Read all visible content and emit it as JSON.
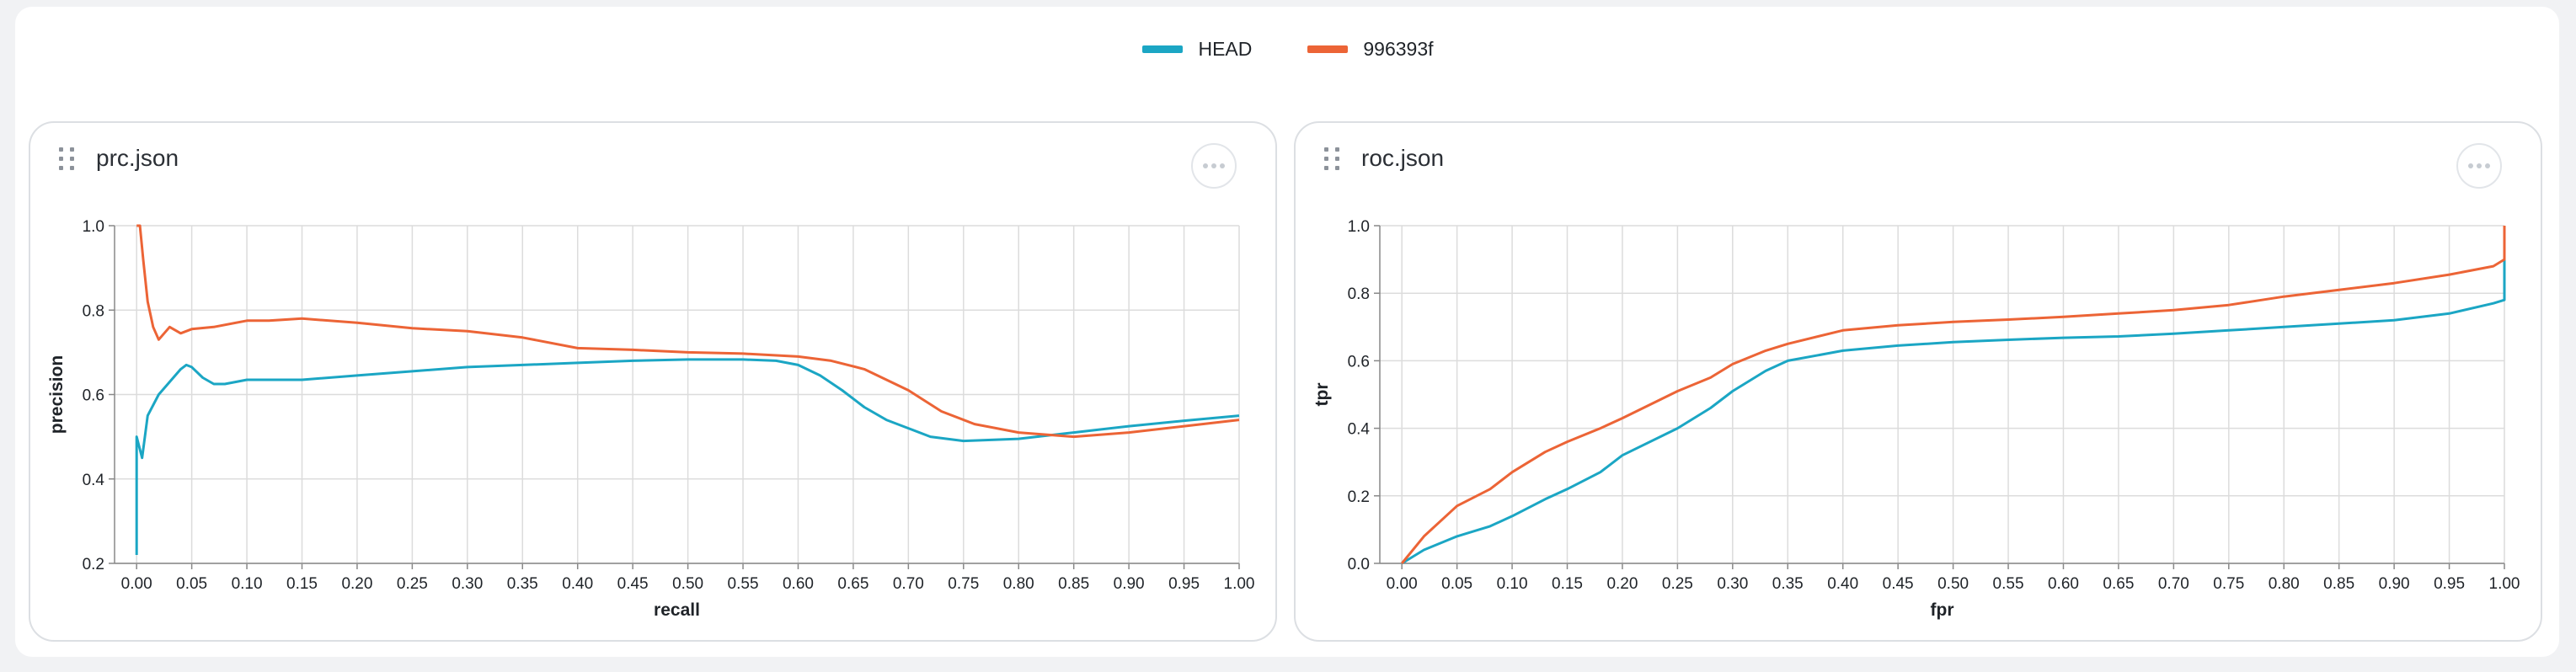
{
  "colors": {
    "head": "#1ba6c4",
    "commit": "#ec6436"
  },
  "legend": [
    {
      "name": "HEAD",
      "color": "#1ba6c4"
    },
    {
      "name": "996393f",
      "color": "#ec6436"
    }
  ],
  "panels": [
    {
      "title": "prc.json"
    },
    {
      "title": "roc.json"
    }
  ],
  "chart_data": [
    {
      "type": "line",
      "title": "prc.json",
      "xlabel": "recall",
      "ylabel": "precision",
      "xlim": [
        -0.02,
        1.0
      ],
      "ylim": [
        0.2,
        1.0
      ],
      "xticks": [
        "0.00",
        "0.05",
        "0.10",
        "0.15",
        "0.20",
        "0.25",
        "0.30",
        "0.35",
        "0.40",
        "0.45",
        "0.50",
        "0.55",
        "0.60",
        "0.65",
        "0.70",
        "0.75",
        "0.80",
        "0.85",
        "0.90",
        "0.95",
        "1.00"
      ],
      "yticks": [
        "0.2",
        "0.4",
        "0.6",
        "0.8",
        "1.0"
      ],
      "grid": true,
      "series": [
        {
          "name": "HEAD",
          "points": [
            [
              0.0,
              0.22
            ],
            [
              0.0,
              0.5
            ],
            [
              0.005,
              0.45
            ],
            [
              0.01,
              0.55
            ],
            [
              0.02,
              0.6
            ],
            [
              0.03,
              0.63
            ],
            [
              0.04,
              0.66
            ],
            [
              0.045,
              0.67
            ],
            [
              0.05,
              0.665
            ],
            [
              0.06,
              0.64
            ],
            [
              0.07,
              0.625
            ],
            [
              0.08,
              0.625
            ],
            [
              0.1,
              0.635
            ],
            [
              0.12,
              0.635
            ],
            [
              0.15,
              0.635
            ],
            [
              0.2,
              0.645
            ],
            [
              0.25,
              0.655
            ],
            [
              0.3,
              0.665
            ],
            [
              0.35,
              0.67
            ],
            [
              0.4,
              0.675
            ],
            [
              0.45,
              0.68
            ],
            [
              0.5,
              0.683
            ],
            [
              0.55,
              0.683
            ],
            [
              0.58,
              0.68
            ],
            [
              0.6,
              0.67
            ],
            [
              0.62,
              0.645
            ],
            [
              0.64,
              0.61
            ],
            [
              0.66,
              0.57
            ],
            [
              0.68,
              0.54
            ],
            [
              0.7,
              0.52
            ],
            [
              0.72,
              0.5
            ],
            [
              0.75,
              0.49
            ],
            [
              0.8,
              0.495
            ],
            [
              0.85,
              0.51
            ],
            [
              0.9,
              0.525
            ],
            [
              0.95,
              0.538
            ],
            [
              1.0,
              0.55
            ]
          ]
        },
        {
          "name": "996393f",
          "points": [
            [
              0.0,
              1.0
            ],
            [
              0.003,
              1.0
            ],
            [
              0.006,
              0.92
            ],
            [
              0.01,
              0.82
            ],
            [
              0.015,
              0.76
            ],
            [
              0.02,
              0.73
            ],
            [
              0.03,
              0.76
            ],
            [
              0.04,
              0.745
            ],
            [
              0.05,
              0.755
            ],
            [
              0.07,
              0.76
            ],
            [
              0.1,
              0.775
            ],
            [
              0.12,
              0.775
            ],
            [
              0.15,
              0.78
            ],
            [
              0.2,
              0.77
            ],
            [
              0.25,
              0.757
            ],
            [
              0.3,
              0.75
            ],
            [
              0.35,
              0.735
            ],
            [
              0.4,
              0.71
            ],
            [
              0.45,
              0.706
            ],
            [
              0.5,
              0.7
            ],
            [
              0.55,
              0.697
            ],
            [
              0.6,
              0.69
            ],
            [
              0.63,
              0.68
            ],
            [
              0.66,
              0.66
            ],
            [
              0.7,
              0.61
            ],
            [
              0.73,
              0.56
            ],
            [
              0.76,
              0.53
            ],
            [
              0.8,
              0.51
            ],
            [
              0.85,
              0.5
            ],
            [
              0.9,
              0.51
            ],
            [
              0.95,
              0.525
            ],
            [
              1.0,
              0.54
            ]
          ]
        }
      ]
    },
    {
      "type": "line",
      "title": "roc.json",
      "xlabel": "fpr",
      "ylabel": "tpr",
      "xlim": [
        -0.02,
        1.0
      ],
      "ylim": [
        0.0,
        1.0
      ],
      "xticks": [
        "0.00",
        "0.05",
        "0.10",
        "0.15",
        "0.20",
        "0.25",
        "0.30",
        "0.35",
        "0.40",
        "0.45",
        "0.50",
        "0.55",
        "0.60",
        "0.65",
        "0.70",
        "0.75",
        "0.80",
        "0.85",
        "0.90",
        "0.95",
        "1.00"
      ],
      "yticks": [
        "0.0",
        "0.2",
        "0.4",
        "0.6",
        "0.8",
        "1.0"
      ],
      "grid": true,
      "series": [
        {
          "name": "HEAD",
          "points": [
            [
              0.0,
              0.0
            ],
            [
              0.02,
              0.04
            ],
            [
              0.05,
              0.08
            ],
            [
              0.08,
              0.11
            ],
            [
              0.1,
              0.14
            ],
            [
              0.13,
              0.19
            ],
            [
              0.15,
              0.22
            ],
            [
              0.18,
              0.27
            ],
            [
              0.2,
              0.32
            ],
            [
              0.25,
              0.4
            ],
            [
              0.28,
              0.46
            ],
            [
              0.3,
              0.51
            ],
            [
              0.33,
              0.57
            ],
            [
              0.35,
              0.6
            ],
            [
              0.4,
              0.63
            ],
            [
              0.45,
              0.645
            ],
            [
              0.5,
              0.655
            ],
            [
              0.55,
              0.662
            ],
            [
              0.6,
              0.668
            ],
            [
              0.65,
              0.672
            ],
            [
              0.7,
              0.68
            ],
            [
              0.75,
              0.69
            ],
            [
              0.8,
              0.7
            ],
            [
              0.85,
              0.71
            ],
            [
              0.9,
              0.72
            ],
            [
              0.95,
              0.74
            ],
            [
              0.99,
              0.77
            ],
            [
              1.0,
              0.78
            ],
            [
              1.0,
              0.9
            ]
          ]
        },
        {
          "name": "996393f",
          "points": [
            [
              0.0,
              0.0
            ],
            [
              0.02,
              0.08
            ],
            [
              0.05,
              0.17
            ],
            [
              0.08,
              0.22
            ],
            [
              0.1,
              0.27
            ],
            [
              0.13,
              0.33
            ],
            [
              0.15,
              0.36
            ],
            [
              0.18,
              0.4
            ],
            [
              0.2,
              0.43
            ],
            [
              0.25,
              0.51
            ],
            [
              0.28,
              0.55
            ],
            [
              0.3,
              0.59
            ],
            [
              0.33,
              0.63
            ],
            [
              0.35,
              0.65
            ],
            [
              0.4,
              0.69
            ],
            [
              0.45,
              0.705
            ],
            [
              0.5,
              0.715
            ],
            [
              0.55,
              0.722
            ],
            [
              0.6,
              0.73
            ],
            [
              0.65,
              0.74
            ],
            [
              0.7,
              0.75
            ],
            [
              0.75,
              0.765
            ],
            [
              0.8,
              0.79
            ],
            [
              0.85,
              0.81
            ],
            [
              0.9,
              0.83
            ],
            [
              0.95,
              0.855
            ],
            [
              0.99,
              0.88
            ],
            [
              1.0,
              0.9
            ],
            [
              1.0,
              1.0
            ]
          ]
        }
      ]
    }
  ]
}
